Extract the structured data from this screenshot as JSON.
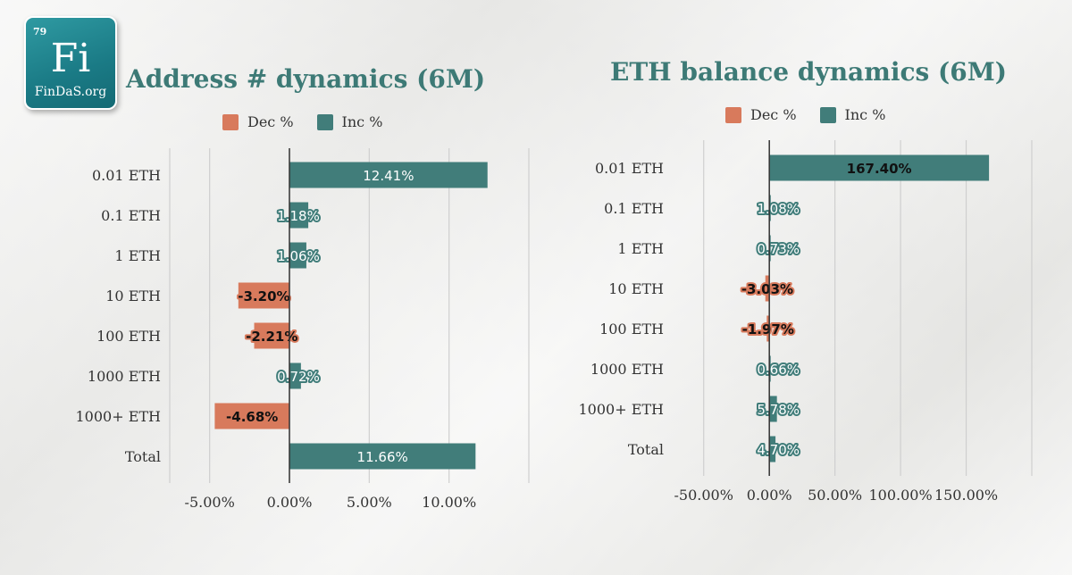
{
  "logo": {
    "number": "79",
    "symbol": "Fi",
    "name": "FinDaS.org"
  },
  "colors": {
    "dec": "#d87a5c",
    "inc": "#417d7a",
    "title": "#3d7a76",
    "grid": "#cfcfcf"
  },
  "legend": {
    "dec_label": "Dec %",
    "inc_label": "Inc %"
  },
  "chart_data": [
    {
      "type": "bar",
      "orientation": "horizontal",
      "title": "Address # dynamics (6M)",
      "categories": [
        "0.01 ETH",
        "0.1 ETH",
        "1 ETH",
        "10 ETH",
        "100 ETH",
        "1000 ETH",
        "1000+ ETH",
        "Total"
      ],
      "values": [
        12.41,
        1.18,
        1.06,
        -3.2,
        -2.21,
        0.72,
        -4.68,
        11.66
      ],
      "value_labels": [
        "12.41%",
        "1.18%",
        "1.06%",
        "-3.20%",
        "-2.21%",
        "0.72%",
        "-4.68%",
        "11.66%"
      ],
      "series": [
        {
          "name": "Dec %"
        },
        {
          "name": "Inc %"
        }
      ],
      "xlim": [
        -7.5,
        15
      ],
      "ticks": [
        -5,
        0,
        5,
        10
      ],
      "tick_labels": [
        "-5.00%",
        "0.00%",
        "5.00%",
        "10.00%"
      ],
      "grid": true,
      "legend": "top"
    },
    {
      "type": "bar",
      "orientation": "horizontal",
      "title": "ETH balance dynamics (6M)",
      "categories": [
        "0.01 ETH",
        "0.1 ETH",
        "1 ETH",
        "10 ETH",
        "100 ETH",
        "1000 ETH",
        "1000+ ETH",
        "Total"
      ],
      "values": [
        167.4,
        1.08,
        0.73,
        -3.03,
        -1.97,
        0.66,
        5.78,
        4.7
      ],
      "value_labels": [
        "167.40%",
        "1.08%",
        "0.73%",
        "-3.03%",
        "-1.97%",
        "0.66%",
        "5.78%",
        "4.70%"
      ],
      "series": [
        {
          "name": "Dec %"
        },
        {
          "name": "Inc %"
        }
      ],
      "xlim": [
        -75,
        200
      ],
      "ticks": [
        -50,
        0,
        50,
        100,
        150
      ],
      "tick_labels": [
        "-50.00%",
        "0.00%",
        "50.00%",
        "100.00%",
        "150.00%"
      ],
      "grid": true,
      "legend": "top"
    }
  ]
}
